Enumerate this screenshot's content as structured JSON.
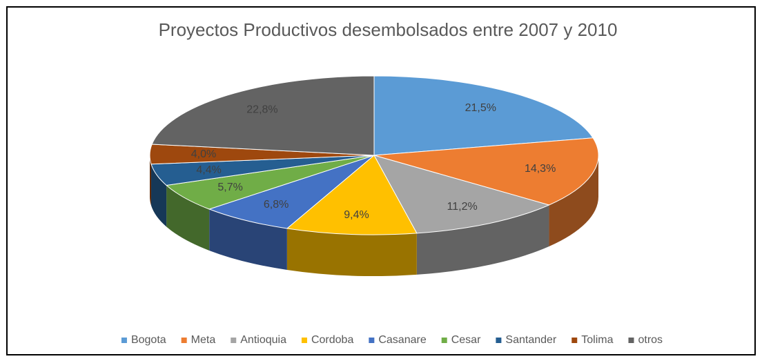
{
  "chart_data": {
    "type": "pie",
    "title": "Proyectos Productivos desembolsados entre 2007 y 2010",
    "categories": [
      "Bogota",
      "Meta",
      "Antioquia",
      "Cordoba",
      "Casanare",
      "Cesar",
      "Santander",
      "Tolima",
      "otros"
    ],
    "values": [
      21.5,
      14.3,
      11.2,
      9.4,
      6.8,
      5.7,
      4.4,
      4.0,
      22.8
    ],
    "value_labels": [
      "21,5%",
      "14,3%",
      "11,2%",
      "9,4%",
      "6,8%",
      "5,7%",
      "4,4%",
      "4,0%",
      "22,8%"
    ],
    "colors": [
      "#5b9bd5",
      "#ed7d31",
      "#a5a5a5",
      "#ffc000",
      "#4472c4",
      "#70ad47",
      "#255e91",
      "#9e480e",
      "#636363"
    ],
    "legend": "bottom"
  }
}
